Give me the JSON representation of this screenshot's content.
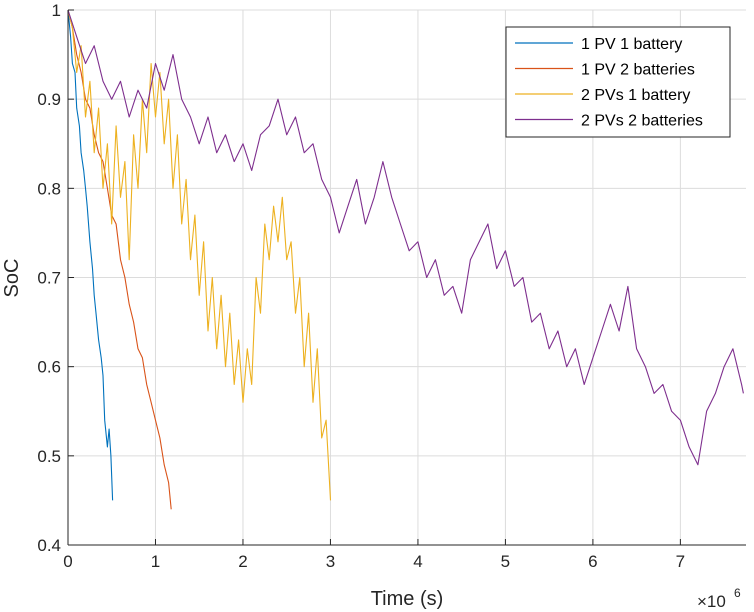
{
  "chart_data": {
    "type": "line",
    "xlabel": "Time (s)",
    "ylabel": "SoC",
    "x_exponent_label": "×10",
    "x_exponent_power": "6",
    "xlim": [
      0,
      7.75
    ],
    "ylim": [
      0.4,
      1.0
    ],
    "x_ticks": [
      0,
      1,
      2,
      3,
      4,
      5,
      6,
      7
    ],
    "x_tick_labels": [
      "0",
      "1",
      "2",
      "3",
      "4",
      "5",
      "6",
      "7"
    ],
    "y_ticks": [
      0.4,
      0.5,
      0.6,
      0.7,
      0.8,
      0.9,
      1.0
    ],
    "y_tick_labels": [
      "0.4",
      "0.5",
      "0.6",
      "0.7",
      "0.8",
      "0.9",
      "1"
    ],
    "grid": true,
    "legend_position": "top-right",
    "series": [
      {
        "name": "1 PV 1 battery",
        "color": "#0072BD",
        "x": [
          0,
          0.03,
          0.05,
          0.08,
          0.1,
          0.13,
          0.15,
          0.18,
          0.2,
          0.22,
          0.25,
          0.28,
          0.3,
          0.32,
          0.35,
          0.38,
          0.4,
          0.42,
          0.45,
          0.47,
          0.49,
          0.51
        ],
        "y": [
          1.0,
          0.97,
          0.94,
          0.93,
          0.89,
          0.87,
          0.84,
          0.82,
          0.8,
          0.78,
          0.74,
          0.71,
          0.68,
          0.66,
          0.63,
          0.61,
          0.59,
          0.54,
          0.51,
          0.53,
          0.5,
          0.45
        ]
      },
      {
        "name": "1 PV 2 batteries",
        "color": "#D95319",
        "x": [
          0,
          0.05,
          0.1,
          0.15,
          0.2,
          0.25,
          0.3,
          0.35,
          0.4,
          0.45,
          0.5,
          0.55,
          0.6,
          0.65,
          0.7,
          0.75,
          0.8,
          0.85,
          0.9,
          0.95,
          1.0,
          1.05,
          1.1,
          1.15,
          1.18
        ],
        "y": [
          1.0,
          0.98,
          0.95,
          0.93,
          0.9,
          0.89,
          0.86,
          0.84,
          0.83,
          0.8,
          0.77,
          0.76,
          0.72,
          0.7,
          0.67,
          0.65,
          0.62,
          0.61,
          0.58,
          0.56,
          0.54,
          0.52,
          0.49,
          0.47,
          0.44
        ]
      },
      {
        "name": "2 PVs 1 battery",
        "color": "#EDB120",
        "x": [
          0,
          0.05,
          0.1,
          0.15,
          0.2,
          0.25,
          0.3,
          0.35,
          0.4,
          0.45,
          0.5,
          0.55,
          0.6,
          0.65,
          0.7,
          0.75,
          0.8,
          0.85,
          0.9,
          0.95,
          1.0,
          1.05,
          1.1,
          1.15,
          1.2,
          1.25,
          1.3,
          1.35,
          1.4,
          1.45,
          1.5,
          1.55,
          1.6,
          1.65,
          1.7,
          1.75,
          1.8,
          1.85,
          1.9,
          1.95,
          2.0,
          2.05,
          2.1,
          2.15,
          2.2,
          2.25,
          2.3,
          2.35,
          2.4,
          2.45,
          2.5,
          2.55,
          2.6,
          2.65,
          2.7,
          2.75,
          2.8,
          2.85,
          2.9,
          2.95,
          3.0
        ],
        "y": [
          1.0,
          0.98,
          0.93,
          0.96,
          0.88,
          0.92,
          0.84,
          0.89,
          0.8,
          0.85,
          0.76,
          0.87,
          0.79,
          0.83,
          0.72,
          0.86,
          0.8,
          0.9,
          0.84,
          0.94,
          0.88,
          0.93,
          0.85,
          0.9,
          0.8,
          0.86,
          0.76,
          0.81,
          0.72,
          0.77,
          0.68,
          0.74,
          0.64,
          0.7,
          0.62,
          0.68,
          0.6,
          0.66,
          0.58,
          0.63,
          0.56,
          0.62,
          0.58,
          0.7,
          0.66,
          0.76,
          0.72,
          0.78,
          0.74,
          0.79,
          0.72,
          0.74,
          0.66,
          0.7,
          0.6,
          0.66,
          0.56,
          0.62,
          0.52,
          0.54,
          0.45
        ]
      },
      {
        "name": "2 PVs 2 batteries",
        "color": "#7E2F8E",
        "x": [
          0,
          0.1,
          0.2,
          0.3,
          0.4,
          0.5,
          0.6,
          0.7,
          0.8,
          0.9,
          1.0,
          1.1,
          1.2,
          1.3,
          1.4,
          1.5,
          1.6,
          1.7,
          1.8,
          1.9,
          2.0,
          2.1,
          2.2,
          2.3,
          2.4,
          2.5,
          2.6,
          2.7,
          2.8,
          2.9,
          3.0,
          3.1,
          3.2,
          3.3,
          3.4,
          3.5,
          3.6,
          3.7,
          3.8,
          3.9,
          4.0,
          4.1,
          4.2,
          4.3,
          4.4,
          4.5,
          4.6,
          4.7,
          4.8,
          4.9,
          5.0,
          5.1,
          5.2,
          5.3,
          5.4,
          5.5,
          5.6,
          5.7,
          5.8,
          5.9,
          6.0,
          6.1,
          6.2,
          6.3,
          6.4,
          6.5,
          6.6,
          6.7,
          6.8,
          6.9,
          7.0,
          7.1,
          7.2,
          7.3,
          7.4,
          7.5,
          7.6,
          7.7,
          7.72
        ],
        "y": [
          1.0,
          0.97,
          0.94,
          0.96,
          0.92,
          0.9,
          0.92,
          0.88,
          0.91,
          0.89,
          0.94,
          0.91,
          0.95,
          0.9,
          0.88,
          0.85,
          0.88,
          0.84,
          0.86,
          0.83,
          0.85,
          0.82,
          0.86,
          0.87,
          0.9,
          0.86,
          0.88,
          0.84,
          0.85,
          0.81,
          0.79,
          0.75,
          0.78,
          0.81,
          0.76,
          0.79,
          0.83,
          0.79,
          0.76,
          0.73,
          0.74,
          0.7,
          0.72,
          0.68,
          0.69,
          0.66,
          0.72,
          0.74,
          0.76,
          0.71,
          0.73,
          0.69,
          0.7,
          0.65,
          0.66,
          0.62,
          0.64,
          0.6,
          0.62,
          0.58,
          0.61,
          0.64,
          0.67,
          0.64,
          0.69,
          0.62,
          0.6,
          0.57,
          0.58,
          0.55,
          0.54,
          0.51,
          0.49,
          0.55,
          0.57,
          0.6,
          0.62,
          0.58,
          0.57
        ]
      }
    ]
  }
}
